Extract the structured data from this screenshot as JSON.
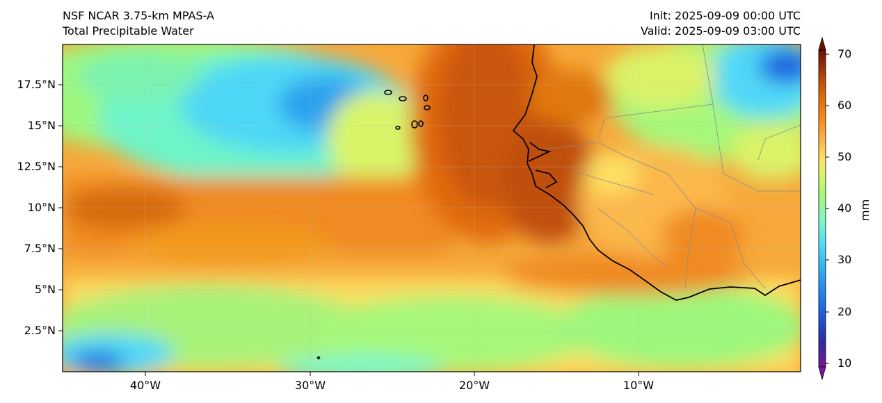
{
  "header": {
    "model": "NSF NCAR 3.75-km MPAS-A",
    "field": "Total Precipitable Water",
    "init": "Init: 2025-09-09 00:00 UTC",
    "valid": "Valid: 2025-09-09 03:00 UTC"
  },
  "map": {
    "region": "Eastern tropical Atlantic / West Africa",
    "lat_ticks": [
      "17.5°N",
      "15°N",
      "12.5°N",
      "10°N",
      "7.5°N",
      "5°N",
      "2.5°N"
    ],
    "lon_ticks": [
      "40°W",
      "30°W",
      "20°W",
      "10°W"
    ],
    "colors": {
      "coast": "#000000",
      "border": "#8a8a8a",
      "grid": "#bbbbbb"
    }
  },
  "colorbar": {
    "unit": "mm",
    "ticks": [
      "70",
      "60",
      "50",
      "40",
      "30",
      "20",
      "10"
    ],
    "colormap": [
      "#7a1696",
      "#2a2d9e",
      "#1b64e0",
      "#2fa8f0",
      "#4fd8f8",
      "#7cf7c8",
      "#a6f77a",
      "#dcf268",
      "#fee062",
      "#fcb24a",
      "#f58c1c",
      "#e06a0c",
      "#c0500a",
      "#8c2a04",
      "#6a1202"
    ]
  }
}
